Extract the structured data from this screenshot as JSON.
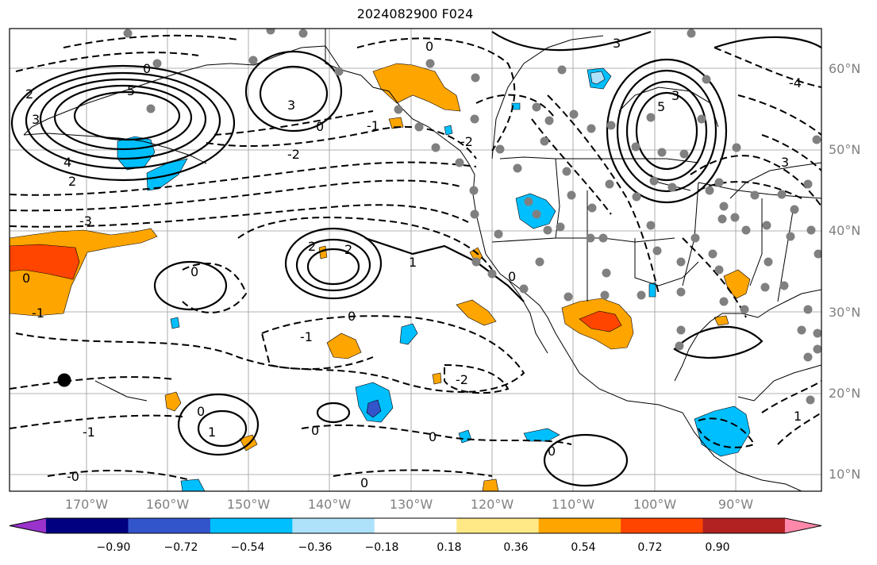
{
  "title": "2024082900 F024",
  "lat_labels": [
    "60°N",
    "50°N",
    "40°N",
    "30°N",
    "20°N",
    "10°N"
  ],
  "lon_labels": [
    "170°W",
    "160°W",
    "150°W",
    "140°W",
    "130°W",
    "120°W",
    "110°W",
    "100°W",
    "90°W"
  ],
  "colorbar": {
    "ticks": [
      "−0.90",
      "−0.72",
      "−0.54",
      "−0.36",
      "−0.18",
      "0.18",
      "0.36",
      "0.54",
      "0.72",
      "0.90"
    ],
    "colors": [
      "#9933cc",
      "#000080",
      "#3355cc",
      "#00bfff",
      "#aee2fb",
      "#ffffff",
      "#ffe987",
      "#ffa500",
      "#ff4500",
      "#b22222",
      "#ff88aa"
    ]
  },
  "contour_labels": [
    "5",
    "3",
    "4",
    "2",
    "0",
    "-1",
    "-2",
    "-3",
    "1",
    "-0",
    "-4"
  ],
  "map_legend": {
    "fill_colors": {
      "orange": "#ffa500",
      "red": "#ff4500",
      "cyan": "#00bfff",
      "blue": "#3355cc",
      "pale_blue": "#aee2fb",
      "yellow": "#ffe987"
    },
    "station_color": "#808080"
  }
}
